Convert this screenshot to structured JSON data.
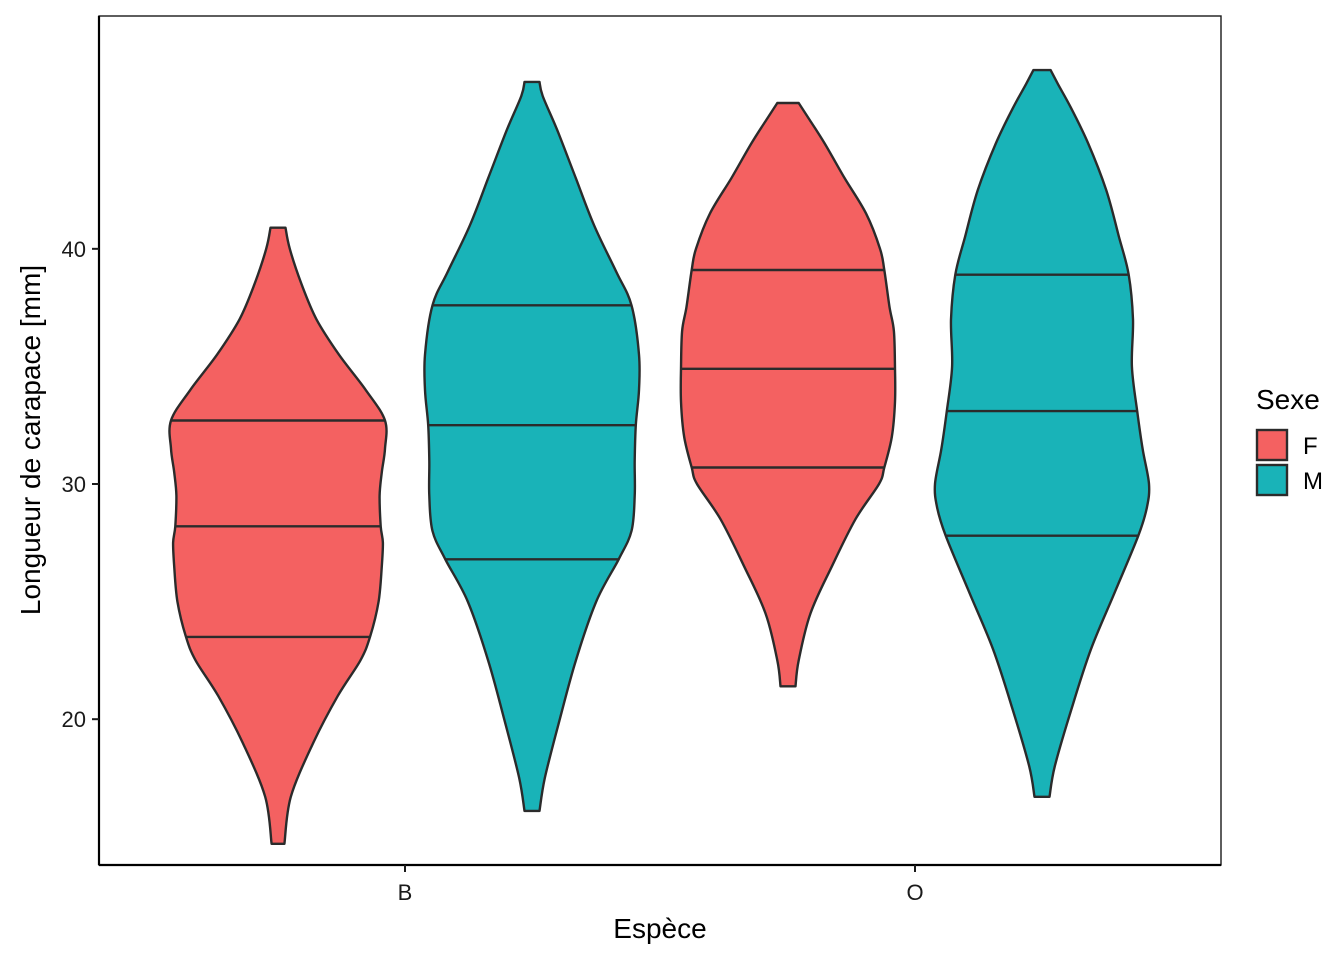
{
  "chart_data": {
    "type": "violin",
    "xlabel": "Espèce",
    "ylabel": "Longueur de carapace  [mm]",
    "categories": [
      "B",
      "O"
    ],
    "yticks": [
      20,
      30,
      40
    ],
    "ylim": [
      13.8,
      49.9
    ],
    "grid": false,
    "legend": {
      "title": "Sexe",
      "position": "right"
    },
    "series": [
      {
        "name": "F",
        "color": "#F46161",
        "violins": [
          {
            "category": "B",
            "min": 14.7,
            "max": 40.9,
            "quantiles": [
              23.5,
              28.2,
              32.7
            ],
            "profile": [
              [
                14.7,
                0.06
              ],
              [
                16.7,
                0.12
              ],
              [
                19.0,
                0.33
              ],
              [
                21.0,
                0.56
              ],
              [
                22.5,
                0.77
              ],
              [
                23.5,
                0.86
              ],
              [
                25.0,
                0.94
              ],
              [
                26.5,
                0.97
              ],
              [
                27.5,
                0.98
              ],
              [
                28.2,
                0.96
              ],
              [
                29.5,
                0.95
              ],
              [
                30.5,
                0.97
              ],
              [
                31.5,
                1.0
              ],
              [
                32.7,
                1.0
              ],
              [
                34.0,
                0.82
              ],
              [
                35.5,
                0.57
              ],
              [
                37.0,
                0.36
              ],
              [
                38.5,
                0.22
              ],
              [
                40.0,
                0.11
              ],
              [
                40.9,
                0.07
              ]
            ]
          },
          {
            "category": "O",
            "min": 21.4,
            "max": 46.2,
            "quantiles": [
              30.7,
              34.9,
              39.1
            ],
            "profile": [
              [
                21.4,
                0.07
              ],
              [
                22.5,
                0.1
              ],
              [
                24.5,
                0.21
              ],
              [
                26.5,
                0.41
              ],
              [
                28.5,
                0.63
              ],
              [
                30.0,
                0.85
              ],
              [
                30.7,
                0.9
              ],
              [
                32.0,
                0.97
              ],
              [
                33.5,
                1.0
              ],
              [
                34.9,
                1.0
              ],
              [
                36.5,
                0.99
              ],
              [
                37.5,
                0.95
              ],
              [
                39.1,
                0.9
              ],
              [
                40.0,
                0.86
              ],
              [
                41.5,
                0.73
              ],
              [
                43.0,
                0.53
              ],
              [
                44.5,
                0.34
              ],
              [
                45.5,
                0.2
              ],
              [
                46.2,
                0.1
              ]
            ]
          }
        ]
      },
      {
        "name": "M",
        "color": "#19B3B8",
        "violins": [
          {
            "category": "B",
            "min": 16.1,
            "max": 47.1,
            "quantiles": [
              26.8,
              32.5,
              37.6
            ],
            "profile": [
              [
                16.1,
                0.07
              ],
              [
                17.5,
                0.12
              ],
              [
                20.0,
                0.26
              ],
              [
                22.5,
                0.41
              ],
              [
                25.0,
                0.6
              ],
              [
                26.8,
                0.81
              ],
              [
                28.0,
                0.93
              ],
              [
                29.5,
                0.96
              ],
              [
                31.0,
                0.96
              ],
              [
                32.5,
                0.97
              ],
              [
                34.0,
                1.0
              ],
              [
                35.5,
                1.0
              ],
              [
                37.6,
                0.93
              ],
              [
                39.0,
                0.79
              ],
              [
                41.0,
                0.58
              ],
              [
                43.0,
                0.41
              ],
              [
                45.0,
                0.24
              ],
              [
                46.5,
                0.1
              ],
              [
                47.1,
                0.07
              ]
            ]
          },
          {
            "category": "O",
            "min": 16.7,
            "max": 47.6,
            "quantiles": [
              27.8,
              33.1,
              38.9
            ],
            "profile": [
              [
                16.7,
                0.07
              ],
              [
                18.0,
                0.12
              ],
              [
                20.5,
                0.28
              ],
              [
                23.0,
                0.46
              ],
              [
                25.5,
                0.69
              ],
              [
                27.8,
                0.9
              ],
              [
                29.0,
                0.98
              ],
              [
                30.0,
                1.0
              ],
              [
                31.5,
                0.94
              ],
              [
                33.1,
                0.89
              ],
              [
                35.0,
                0.84
              ],
              [
                37.0,
                0.85
              ],
              [
                38.9,
                0.81
              ],
              [
                40.5,
                0.72
              ],
              [
                42.5,
                0.6
              ],
              [
                44.5,
                0.43
              ],
              [
                46.0,
                0.27
              ],
              [
                47.0,
                0.15
              ],
              [
                47.6,
                0.08
              ]
            ]
          }
        ]
      }
    ]
  }
}
